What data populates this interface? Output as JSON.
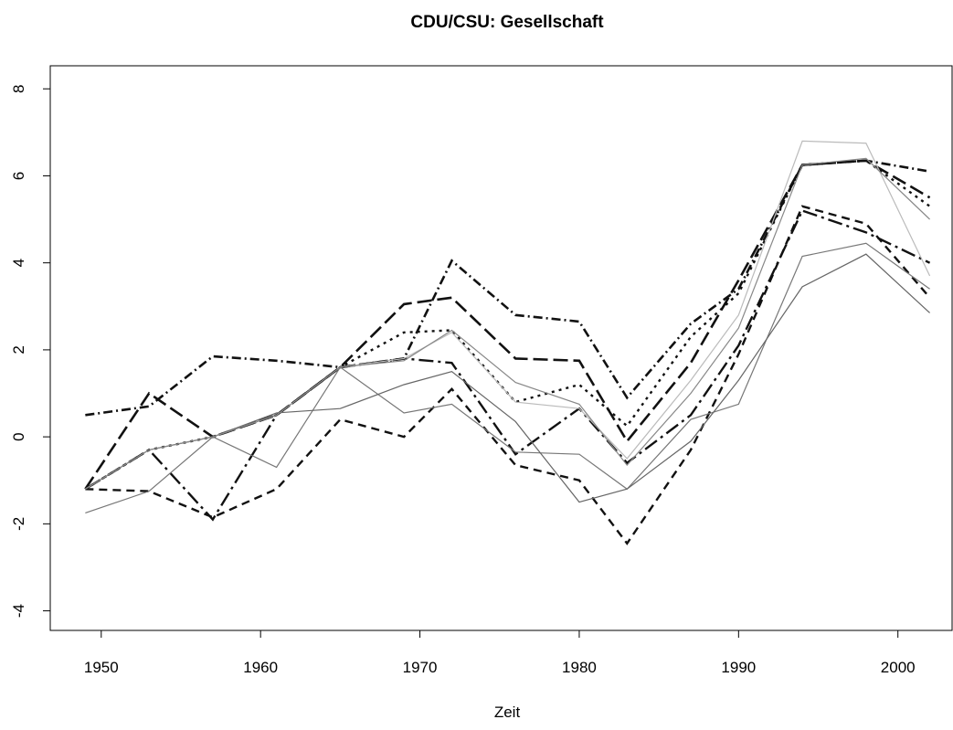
{
  "chart_data": {
    "type": "line",
    "title": "CDU/CSU: Gesellschaft",
    "x_label": "Zeit",
    "x": [
      1949,
      1953,
      1957,
      1961,
      1965,
      1969,
      1972,
      1976,
      1980,
      1983,
      1987,
      1990,
      1994,
      1998,
      2002
    ],
    "xlim": [
      1946.8,
      2003.4
    ],
    "xticks": [
      1950,
      1960,
      1970,
      1980,
      1990,
      2000
    ],
    "ylim": [
      -4.45,
      8.53
    ],
    "yticks": [
      -4,
      -2,
      0,
      2,
      4,
      6,
      8
    ],
    "series": [
      {
        "color": "#111111",
        "width": 2.6,
        "dash": "10,4,2,4",
        "values": [
          0.5,
          0.7,
          1.85,
          1.75,
          1.6,
          1.8,
          4.05,
          2.8,
          2.65,
          0.9,
          2.6,
          3.4,
          6.25,
          6.35,
          6.1
        ]
      },
      {
        "color": "#111111",
        "width": 2.6,
        "dash": "16,6",
        "values": [
          -1.2,
          1.0,
          0.0,
          0.5,
          1.6,
          3.05,
          3.2,
          1.8,
          1.75,
          -0.1,
          1.7,
          3.6,
          6.25,
          6.35,
          5.5
        ]
      },
      {
        "color": "#111111",
        "width": 2.4,
        "dash": "3,5",
        "values": [
          -1.2,
          -0.3,
          0.0,
          0.5,
          1.6,
          2.4,
          2.45,
          0.8,
          1.2,
          0.25,
          2.3,
          3.3,
          6.25,
          6.35,
          5.3
        ]
      },
      {
        "color": "#111111",
        "width": 2.4,
        "dash": "9,6",
        "values": [
          -1.2,
          -1.25,
          -1.85,
          -1.2,
          0.4,
          0.0,
          1.1,
          -0.65,
          -1.0,
          -2.45,
          -0.3,
          1.9,
          5.3,
          4.9,
          3.2
        ]
      },
      {
        "color": "#111111",
        "width": 2.4,
        "dash": "16,5,3,5",
        "values": [
          -1.2,
          -0.3,
          -1.9,
          0.5,
          1.6,
          1.8,
          1.7,
          -0.4,
          0.65,
          -0.6,
          0.5,
          2.1,
          5.2,
          4.7,
          4.0
        ]
      },
      {
        "color": "#bbbbbb",
        "width": 1.2,
        "dash": "none",
        "values": [
          -1.2,
          -0.3,
          0.0,
          0.5,
          1.6,
          1.8,
          2.4,
          0.8,
          0.65,
          -0.5,
          1.3,
          2.8,
          6.8,
          6.75,
          3.7
        ]
      },
      {
        "color": "#777777",
        "width": 1.2,
        "dash": "none",
        "values": [
          -1.75,
          -1.25,
          0.0,
          -0.7,
          1.6,
          0.55,
          0.75,
          -0.35,
          -0.4,
          -1.2,
          0.4,
          0.75,
          4.15,
          4.45,
          3.4
        ]
      },
      {
        "color": "#666666",
        "width": 1.2,
        "dash": "none",
        "values": [
          -1.2,
          -0.3,
          0.0,
          0.55,
          0.65,
          1.2,
          1.5,
          0.35,
          -1.5,
          -1.2,
          -0.1,
          1.3,
          3.45,
          4.2,
          2.85
        ]
      },
      {
        "color": "#888888",
        "width": 1.2,
        "dash": "none",
        "values": [
          -1.2,
          -0.3,
          0.0,
          0.5,
          1.6,
          1.75,
          2.45,
          1.25,
          0.75,
          -0.65,
          1.0,
          2.5,
          6.25,
          6.4,
          5.0
        ]
      }
    ]
  }
}
